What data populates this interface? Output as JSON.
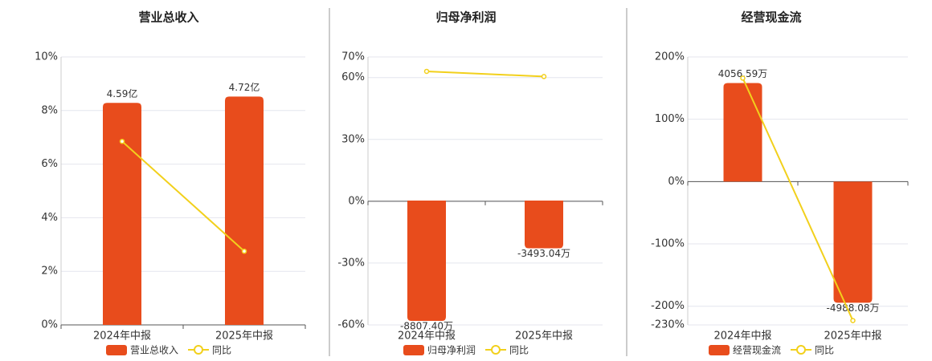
{
  "chart_data": [
    {
      "type": "combo",
      "title": "营业总收入",
      "categories": [
        "2024年中报",
        "2025年中报"
      ],
      "ylim": [
        0,
        10
      ],
      "yticks": [
        {
          "value": 0,
          "label": "0%"
        },
        {
          "value": 2,
          "label": "2%"
        },
        {
          "value": 4,
          "label": "4%"
        },
        {
          "value": 6,
          "label": "6%"
        },
        {
          "value": 8,
          "label": "8%"
        },
        {
          "value": 10,
          "label": "10%"
        }
      ],
      "y2lim": [
        0,
        5.54
      ],
      "grid": true,
      "series": [
        {
          "name": "营业总收入",
          "type": "bar",
          "axis": "y2",
          "color": "#e84c1c",
          "values": [
            4.59,
            4.72
          ],
          "value_labels": [
            "4.59亿",
            "4.72亿"
          ]
        },
        {
          "name": "同比",
          "type": "line",
          "color": "#f2d01c",
          "values": [
            6.85,
            2.75
          ]
        }
      ]
    },
    {
      "type": "combo",
      "title": "归母净利润",
      "categories": [
        "2024年中报",
        "2025年中报"
      ],
      "ylim": [
        -60,
        70
      ],
      "yticks": [
        {
          "value": -60,
          "label": "-60%"
        },
        {
          "value": -30,
          "label": "-30%"
        },
        {
          "value": 0,
          "label": "0%"
        },
        {
          "value": 30,
          "label": "30%"
        },
        {
          "value": 60,
          "label": "60%"
        },
        {
          "value": 70,
          "label": "70%"
        }
      ],
      "y2lim": [
        -9100,
        10510
      ],
      "grid": true,
      "series": [
        {
          "name": "归母净利润",
          "type": "bar",
          "axis": "y2",
          "color": "#e84c1c",
          "values": [
            -8807.4,
            -3493.04
          ],
          "value_labels": [
            "-8807.40万",
            "-3493.04万"
          ]
        },
        {
          "name": "同比",
          "type": "line",
          "color": "#f2d01c",
          "values": [
            63,
            60.5
          ]
        }
      ]
    },
    {
      "type": "combo",
      "title": "经营现金流",
      "categories": [
        "2024年中报",
        "2025年中报"
      ],
      "ylim": [
        -230,
        200
      ],
      "yticks": [
        {
          "value": -230,
          "label": "-230%"
        },
        {
          "value": -200,
          "label": "-200%"
        },
        {
          "value": -100,
          "label": "-100%"
        },
        {
          "value": 0,
          "label": "0%"
        },
        {
          "value": 100,
          "label": "100%"
        },
        {
          "value": 200,
          "label": "200%"
        }
      ],
      "y2lim": [
        -5900,
        5130
      ],
      "grid": true,
      "series": [
        {
          "name": "经营现金流",
          "type": "bar",
          "axis": "y2",
          "color": "#e84c1c",
          "values": [
            4056.59,
            -4988.08
          ],
          "value_labels": [
            "4056.59万",
            "-4988.08万"
          ]
        },
        {
          "name": "同比",
          "type": "line",
          "color": "#f2d01c",
          "values": [
            166,
            -223
          ]
        }
      ]
    }
  ]
}
